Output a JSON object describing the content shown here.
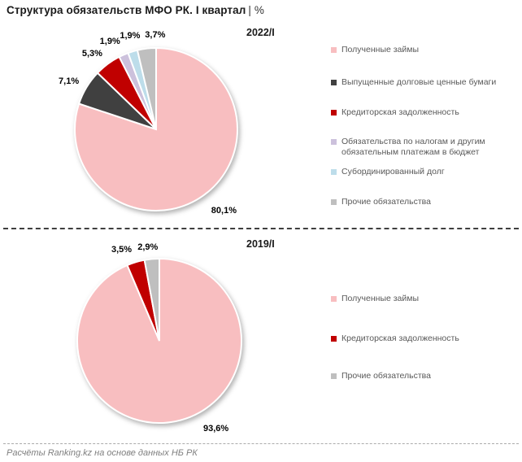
{
  "title": "Структура обязательств МФО РК. I квартал",
  "title_unit": "| %",
  "footer": "Расчёты Ranking.kz на основе данных НБ РК",
  "chart_data": [
    {
      "type": "pie",
      "title": "2022/I",
      "unit": "%",
      "legend_position": "right",
      "start_angle_deg": 0,
      "direction": "clockwise",
      "slices": [
        {
          "label": "Полученные займы",
          "value": 80.1,
          "display": "80,1%",
          "color": "#F8BEC0"
        },
        {
          "label": "Выпущенные долговые ценные бумаги",
          "value": 7.1,
          "display": "7,1%",
          "color": "#404040"
        },
        {
          "label": "Кредиторская задолженность",
          "value": 5.3,
          "display": "5,3%",
          "color": "#C00000"
        },
        {
          "label": "Обязательства по налогам и другим обязательным платежам в бюджет",
          "value": 1.9,
          "display": "1,9%",
          "color": "#CCC1DC"
        },
        {
          "label": "Субординированный долг",
          "value": 1.9,
          "display": "1,9%",
          "color": "#BDDDEA"
        },
        {
          "label": "Прочие обязательства",
          "value": 3.7,
          "display": "3,7%",
          "color": "#BFBFBF"
        }
      ]
    },
    {
      "type": "pie",
      "title": "2019/I",
      "unit": "%",
      "legend_position": "right",
      "start_angle_deg": 0,
      "direction": "clockwise",
      "slices": [
        {
          "label": "Полученные займы",
          "value": 93.6,
          "display": "93,6%",
          "color": "#F8BEC0"
        },
        {
          "label": "Кредиторская задолженность",
          "value": 3.5,
          "display": "3,5%",
          "color": "#C00000"
        },
        {
          "label": "Прочие обязательства",
          "value": 2.9,
          "display": "2,9%",
          "color": "#BFBFBF"
        }
      ]
    }
  ]
}
